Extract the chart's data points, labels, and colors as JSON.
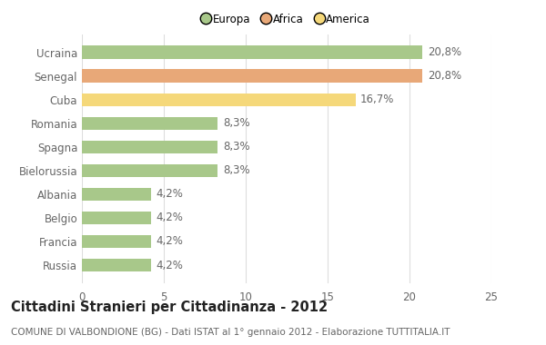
{
  "categories": [
    "Ucraina",
    "Senegal",
    "Cuba",
    "Romania",
    "Spagna",
    "Bielorussia",
    "Albania",
    "Belgio",
    "Francia",
    "Russia"
  ],
  "values": [
    20.8,
    20.8,
    16.7,
    8.3,
    8.3,
    8.3,
    4.2,
    4.2,
    4.2,
    4.2
  ],
  "labels": [
    "20,8%",
    "20,8%",
    "16,7%",
    "8,3%",
    "8,3%",
    "8,3%",
    "4,2%",
    "4,2%",
    "4,2%",
    "4,2%"
  ],
  "colors": [
    "#a8c88a",
    "#e8a878",
    "#f5d87a",
    "#a8c88a",
    "#a8c88a",
    "#a8c88a",
    "#a8c88a",
    "#a8c88a",
    "#a8c88a",
    "#a8c88a"
  ],
  "legend_labels": [
    "Europa",
    "Africa",
    "America"
  ],
  "legend_colors": [
    "#a8c88a",
    "#e8a878",
    "#f5d87a"
  ],
  "title": "Cittadini Stranieri per Cittadinanza - 2012",
  "subtitle": "COMUNE DI VALBONDIONE (BG) - Dati ISTAT al 1° gennaio 2012 - Elaborazione TUTTITALIA.IT",
  "xlim": [
    0,
    25
  ],
  "xticks": [
    0,
    5,
    10,
    15,
    20,
    25
  ],
  "background_color": "#ffffff",
  "bar_height": 0.55,
  "grid_color": "#dddddd",
  "text_color": "#666666",
  "label_fontsize": 8.5,
  "tick_fontsize": 8.5,
  "title_fontsize": 10.5,
  "subtitle_fontsize": 7.5
}
